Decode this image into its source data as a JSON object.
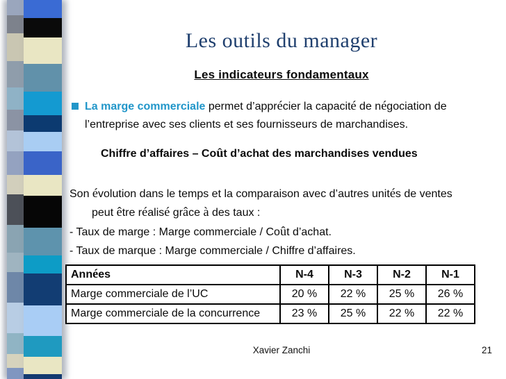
{
  "slide": {
    "title": "Les outils du manager",
    "subtitle": "Les indicateurs fondamentaux",
    "bullet": {
      "highlight": "La marge commerciale",
      "rest": " permet d’apprécier la capacité de négociation de l’entreprise avec ses clients et ses fournisseurs de marchandises."
    },
    "formula": "Chiffre d’affaires – Coût d’achat des marchandises vendues",
    "paragraph": "Son évolution dans le temps et la comparaison avec d’autres unités de ventes peut être réalisé grâce à des taux :",
    "list": [
      "- Taux de marge : Marge commerciale / Coût d’achat.",
      "- Taux de marque : Marge commerciale / Chiffre d’affaires."
    ],
    "footer": {
      "author": "Xavier Zanchi",
      "page": "21"
    }
  },
  "table": {
    "headers": [
      "Années",
      "N-4",
      "N-3",
      "N-2",
      "N-1"
    ],
    "rows": [
      {
        "label": "Marge commerciale de l’UC",
        "values": [
          "20 %",
          "22 %",
          "25 %",
          "26 %"
        ]
      },
      {
        "label": "Marge commerciale de la concurrence",
        "values": [
          "23 %",
          "25 %",
          "22 %",
          "22 %"
        ]
      }
    ]
  },
  "colors": {
    "title_blue": "#1f3f6e",
    "accent_blue": "#2196c9",
    "text": "#0a0a0a",
    "table_border": "#000000"
  },
  "decor": {
    "sidebar_left": [
      {
        "c": "#9aa6bd",
        "h": 22
      },
      {
        "c": "#7d828c",
        "h": 26
      },
      {
        "c": "#c9c6b2",
        "h": 40
      },
      {
        "c": "#8f9dab",
        "h": 38
      },
      {
        "c": "#8fb2c6",
        "h": 32
      },
      {
        "c": "#8b93a4",
        "h": 30
      },
      {
        "c": "#b3c3d8",
        "h": 30
      },
      {
        "c": "#94a2c0",
        "h": 34
      },
      {
        "c": "#d2cfbc",
        "h": 28
      },
      {
        "c": "#4c5058",
        "h": 44
      },
      {
        "c": "#8aa4b2",
        "h": 40
      },
      {
        "c": "#9fb4c0",
        "h": 28
      },
      {
        "c": "#6e87a8",
        "h": 44
      },
      {
        "c": "#b8cde4",
        "h": 44
      },
      {
        "c": "#90b4c4",
        "h": 30
      },
      {
        "c": "#d6d3bd",
        "h": 20
      },
      {
        "c": "#8096c0",
        "h": 16
      }
    ],
    "sidebar_right": [
      {
        "c": "#3a6bd4",
        "h": 26
      },
      {
        "c": "#0a0a0a",
        "h": 28
      },
      {
        "c": "#e9e6c3",
        "h": 38
      },
      {
        "c": "#6191aa",
        "h": 40
      },
      {
        "c": "#149ad1",
        "h": 34
      },
      {
        "c": "#0c3a70",
        "h": 24
      },
      {
        "c": "#a9cdf3",
        "h": 28
      },
      {
        "c": "#3a64c8",
        "h": 34
      },
      {
        "c": "#e9e6c3",
        "h": 30
      },
      {
        "c": "#060606",
        "h": 46
      },
      {
        "c": "#5e93ad",
        "h": 40
      },
      {
        "c": "#0d9cc6",
        "h": 26
      },
      {
        "c": "#123d73",
        "h": 46
      },
      {
        "c": "#a9cdf5",
        "h": 44
      },
      {
        "c": "#1f9ac0",
        "h": 30
      },
      {
        "c": "#e9e6c3",
        "h": 25
      },
      {
        "c": "#143a70",
        "h": 7
      }
    ]
  }
}
